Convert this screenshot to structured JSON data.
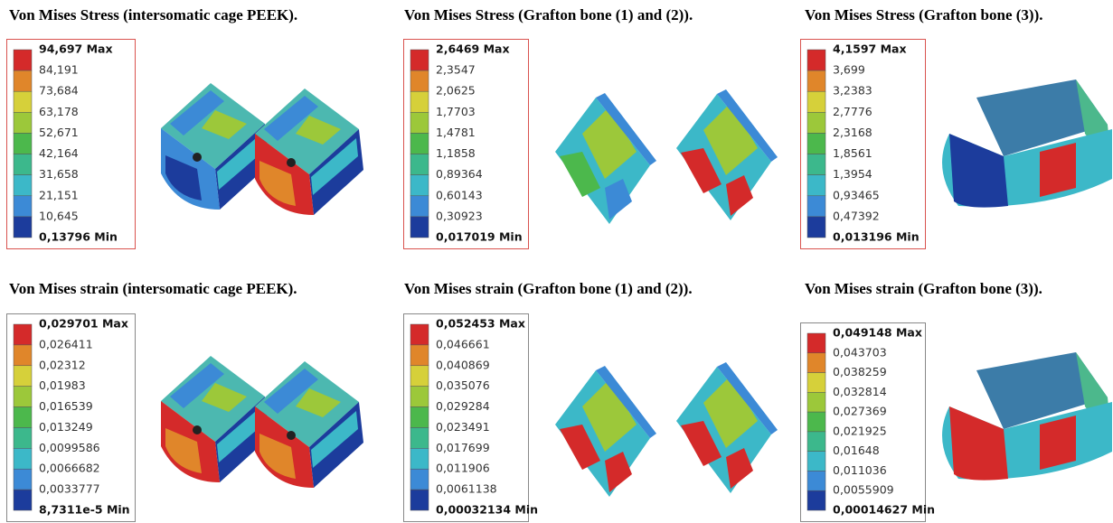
{
  "panels": [
    {
      "title": "Von Mises Stress (intersomatic cage PEEK).",
      "border_color": "#d9534f",
      "legend": [
        "94,697 Max",
        "84,191",
        "73,684",
        "63,178",
        "52,671",
        "42,164",
        "31,658",
        "21,151",
        "10,645",
        "0,13796 Min"
      ]
    },
    {
      "title": "Von Mises Stress (Grafton bone (1) and (2)).",
      "border_color": "#d9534f",
      "legend": [
        "2,6469 Max",
        "2,3547",
        "2,0625",
        "1,7703",
        "1,4781",
        "1,1858",
        "0,89364",
        "0,60143",
        "0,30923",
        "0,017019 Min"
      ]
    },
    {
      "title": "Von Mises Stress (Grafton bone (3)).",
      "border_color": "#d9534f",
      "legend": [
        "4,1597 Max",
        "3,699",
        "3,2383",
        "2,7776",
        "2,3168",
        "1,8561",
        "1,3954",
        "0,93465",
        "0,47392",
        "0,013196 Min"
      ]
    },
    {
      "title": "Von Mises strain (intersomatic cage PEEK).",
      "border_color": "#888888",
      "legend": [
        "0,029701 Max",
        "0,026411",
        "0,02312",
        "0,01983",
        "0,016539",
        "0,013249",
        "0,0099586",
        "0,0066682",
        "0,0033777",
        "8,7311e-5 Min"
      ]
    },
    {
      "title": "Von Mises strain (Grafton bone (1) and (2)).",
      "border_color": "#888888",
      "legend": [
        "0,052453 Max",
        "0,046661",
        "0,040869",
        "0,035076",
        "0,029284",
        "0,023491",
        "0,017699",
        "0,011906",
        "0,0061138",
        "0,00032134 Min"
      ]
    },
    {
      "title": "Von Mises strain (Grafton bone (3)).",
      "border_color": "#888888",
      "legend": [
        "0,049148 Max",
        "0,043703",
        "0,038259",
        "0,032814",
        "0,027369",
        "0,021925",
        "0,01648",
        "0,011036",
        "0,0055909",
        "0,00014627 Min"
      ]
    }
  ],
  "legend_colors": [
    "#d42a2a",
    "#e0862a",
    "#d6d03a",
    "#9cc83a",
    "#4cb84c",
    "#3cb88c",
    "#3cb8c8",
    "#3c8ad6",
    "#1c3c9c"
  ]
}
